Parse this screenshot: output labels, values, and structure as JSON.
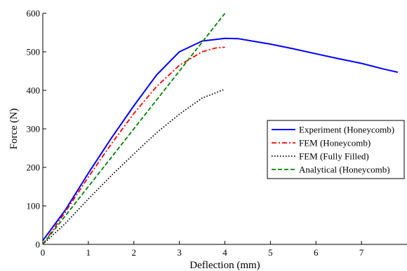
{
  "chart_data": {
    "type": "line",
    "title": "",
    "xlabel": "Deflection (mm)",
    "ylabel": "Force (N)",
    "xlim": [
      0,
      8
    ],
    "ylim": [
      0,
      600
    ],
    "xticks": [
      0,
      1,
      2,
      3,
      4,
      5,
      6,
      7
    ],
    "yticks": [
      0,
      100,
      200,
      300,
      400,
      500,
      600
    ],
    "grid": false,
    "legend_position": "right-center",
    "series": [
      {
        "name": "Experiment (Honeycomb)",
        "color": "#0000ff",
        "style": "solid",
        "x": [
          0,
          0.25,
          0.5,
          1.0,
          1.5,
          2.0,
          2.5,
          3.0,
          3.5,
          4.0,
          4.3,
          5.0,
          5.5,
          6.0,
          6.5,
          7.0,
          7.5,
          7.8
        ],
        "y": [
          10,
          50,
          90,
          185,
          275,
          360,
          440,
          500,
          528,
          535,
          534,
          520,
          508,
          495,
          482,
          470,
          455,
          447
        ]
      },
      {
        "name": "FEM (Honeycomb)",
        "color": "#ff0000",
        "style": "dashdot",
        "x": [
          0,
          0.5,
          1.0,
          1.5,
          2.0,
          2.5,
          3.0,
          3.5,
          3.8,
          4.0
        ],
        "y": [
          0,
          85,
          175,
          260,
          340,
          410,
          465,
          500,
          510,
          512
        ]
      },
      {
        "name": "FEM (Fully Filled)",
        "color": "#000000",
        "style": "dotted",
        "x": [
          0,
          0.5,
          1.0,
          1.5,
          2.0,
          2.5,
          3.0,
          3.5,
          4.0
        ],
        "y": [
          0,
          55,
          118,
          178,
          235,
          290,
          338,
          380,
          403
        ]
      },
      {
        "name": "Analytical (Honeycomb)",
        "color": "#008000",
        "style": "dashed",
        "x": [
          0,
          4.0
        ],
        "y": [
          0,
          600
        ]
      }
    ]
  }
}
